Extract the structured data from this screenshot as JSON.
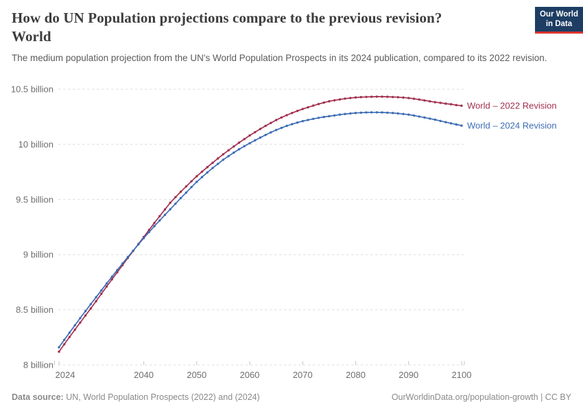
{
  "header": {
    "title_line1": "How do UN Population projections compare to the previous revision?",
    "title_line2": "World",
    "subtitle": "The medium population projection from the UN's World Population Prospects in its 2024 publication, compared to its 2022 revision.",
    "logo": {
      "line1": "Our World",
      "line2": "in Data",
      "bg_color": "#1d3d63",
      "accent_color": "#dc352c"
    }
  },
  "footer": {
    "source_label": "Data source:",
    "source_text": " UN, World Population Prospects (2022) and (2024)",
    "link_text": "OurWorldinData.org/population-growth | CC BY"
  },
  "chart_data": {
    "type": "line",
    "title": "How do UN Population projections compare to the previous revision? World",
    "xlabel": "",
    "ylabel": "",
    "grid": "dashed-horizontal",
    "legend_position": "end-of-line-labels",
    "xlim": [
      2024,
      2100
    ],
    "ylim": [
      8,
      10.5
    ],
    "x_ticks": [
      2024,
      2040,
      2050,
      2060,
      2070,
      2080,
      2090,
      2100
    ],
    "y_ticks": [
      {
        "value": 8,
        "label": "8 billion"
      },
      {
        "value": 8.5,
        "label": "8.5 billion"
      },
      {
        "value": 9,
        "label": "9 billion"
      },
      {
        "value": 9.5,
        "label": "9.5 billion"
      },
      {
        "value": 10,
        "label": "10 billion"
      },
      {
        "value": 10.5,
        "label": "10.5 billion"
      }
    ],
    "x": [
      2024,
      2025,
      2026,
      2027,
      2028,
      2029,
      2030,
      2031,
      2032,
      2033,
      2034,
      2035,
      2036,
      2037,
      2038,
      2039,
      2040,
      2041,
      2042,
      2043,
      2044,
      2045,
      2046,
      2047,
      2048,
      2049,
      2050,
      2051,
      2052,
      2053,
      2054,
      2055,
      2056,
      2057,
      2058,
      2059,
      2060,
      2061,
      2062,
      2063,
      2064,
      2065,
      2066,
      2067,
      2068,
      2069,
      2070,
      2071,
      2072,
      2073,
      2074,
      2075,
      2076,
      2077,
      2078,
      2079,
      2080,
      2081,
      2082,
      2083,
      2084,
      2085,
      2086,
      2087,
      2088,
      2089,
      2090,
      2091,
      2092,
      2093,
      2094,
      2095,
      2096,
      2097,
      2098,
      2099,
      2100
    ],
    "series": [
      {
        "name": "World – 2022 Revision",
        "color": "#a2304e",
        "unit": "billion people",
        "values": [
          8.12,
          8.187,
          8.253,
          8.319,
          8.384,
          8.448,
          8.511,
          8.578,
          8.645,
          8.711,
          8.776,
          8.84,
          8.905,
          8.97,
          9.033,
          9.097,
          9.16,
          9.224,
          9.287,
          9.349,
          9.41,
          9.47,
          9.521,
          9.57,
          9.618,
          9.665,
          9.71,
          9.752,
          9.793,
          9.833,
          9.872,
          9.91,
          9.946,
          9.981,
          10.015,
          10.048,
          10.08,
          10.11,
          10.139,
          10.167,
          10.194,
          10.22,
          10.243,
          10.264,
          10.284,
          10.303,
          10.32,
          10.336,
          10.351,
          10.365,
          10.378,
          10.39,
          10.399,
          10.407,
          10.414,
          10.42,
          10.425,
          10.428,
          10.43,
          10.431,
          10.432,
          10.432,
          10.431,
          10.429,
          10.427,
          10.424,
          10.42,
          10.413,
          10.406,
          10.398,
          10.39,
          10.382,
          10.376,
          10.369,
          10.363,
          10.356,
          10.35
        ]
      },
      {
        "name": "World – 2024 Revision",
        "color": "#3d6cb3",
        "unit": "billion people",
        "values": [
          8.16,
          8.227,
          8.293,
          8.359,
          8.424,
          8.488,
          8.551,
          8.614,
          8.676,
          8.738,
          8.799,
          8.86,
          8.92,
          8.978,
          9.036,
          9.093,
          9.15,
          9.204,
          9.258,
          9.31,
          9.361,
          9.411,
          9.462,
          9.513,
          9.562,
          9.612,
          9.66,
          9.703,
          9.745,
          9.785,
          9.823,
          9.86,
          9.893,
          9.925,
          9.955,
          9.983,
          10.01,
          10.036,
          10.061,
          10.085,
          10.108,
          10.13,
          10.149,
          10.167,
          10.183,
          10.197,
          10.21,
          10.221,
          10.231,
          10.24,
          10.248,
          10.255,
          10.262,
          10.269,
          10.275,
          10.28,
          10.284,
          10.287,
          10.289,
          10.29,
          10.29,
          10.289,
          10.287,
          10.284,
          10.28,
          10.275,
          10.269,
          10.261,
          10.252,
          10.243,
          10.233,
          10.223,
          10.212,
          10.201,
          10.19,
          10.18,
          10.17
        ]
      }
    ]
  }
}
